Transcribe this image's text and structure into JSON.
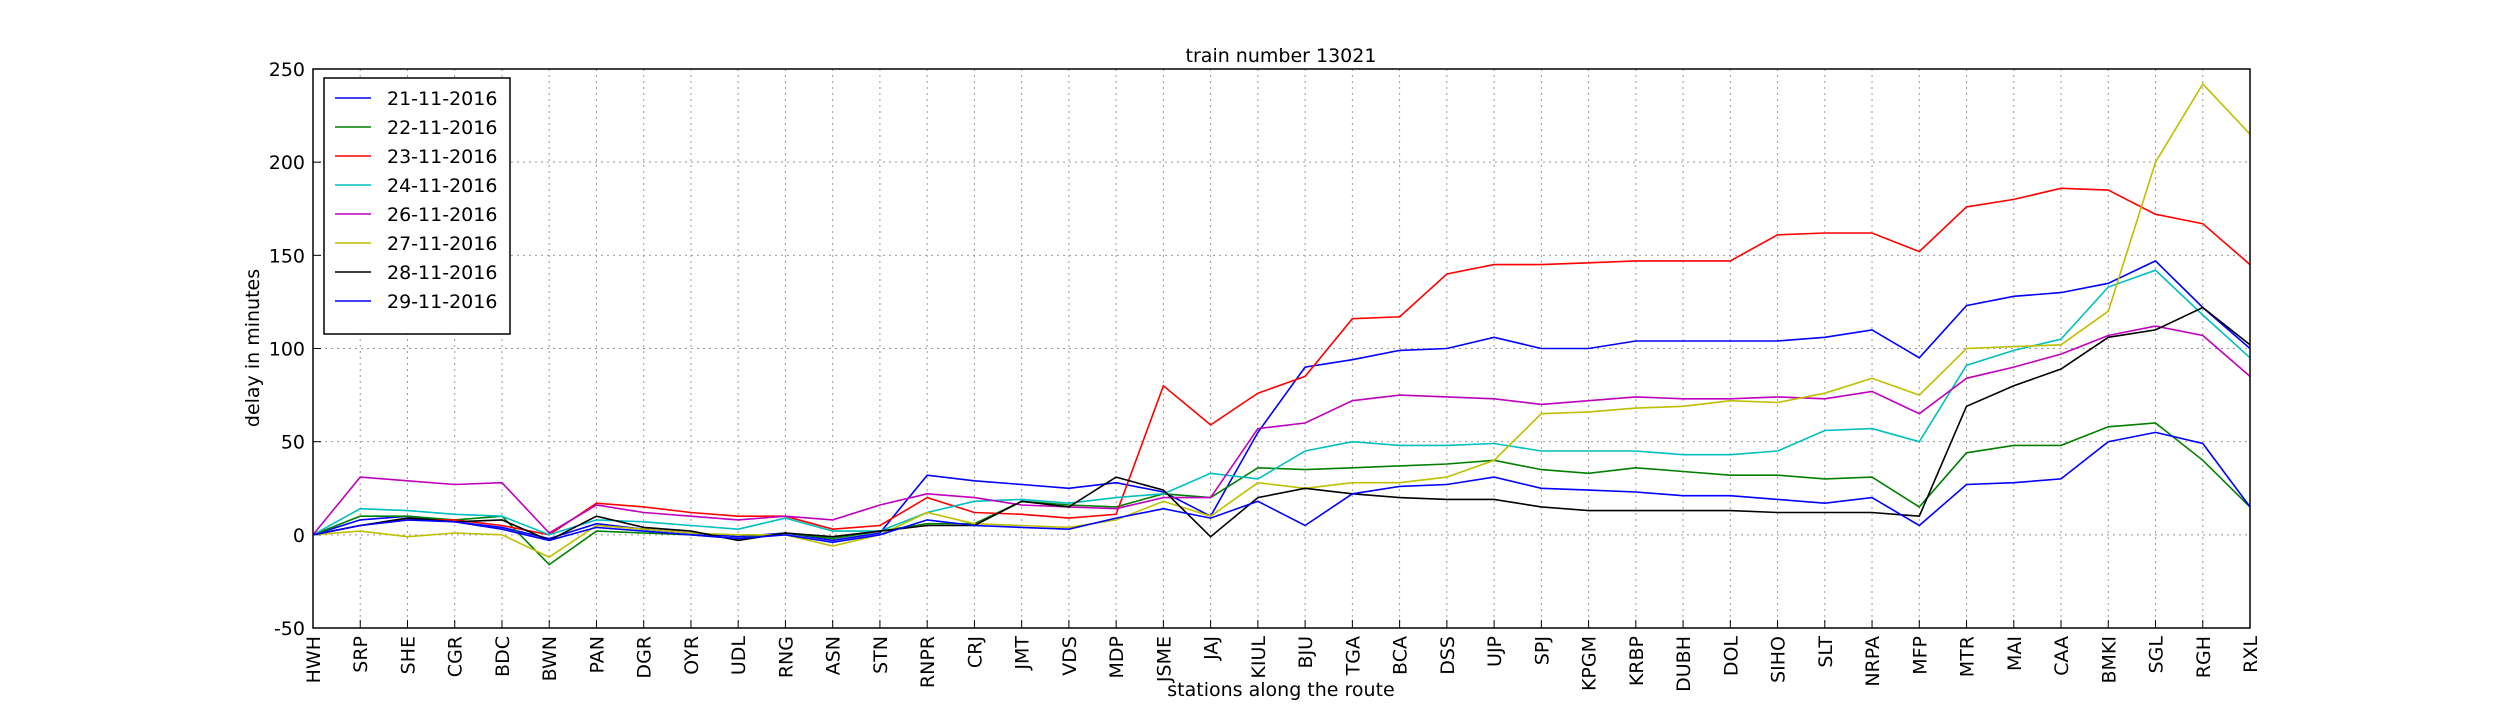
{
  "chart_data": {
    "type": "line",
    "title": "train number 13021",
    "x_label": "stations along the route",
    "y_label": "delay in minutes",
    "categories": [
      "HWH",
      "SRP",
      "SHE",
      "CGR",
      "BDC",
      "BWN",
      "PAN",
      "DGR",
      "OYR",
      "UDL",
      "RNG",
      "ASN",
      "STN",
      "RNPR",
      "CRJ",
      "JMT",
      "VDS",
      "MDP",
      "JSME",
      "JAJ",
      "KIUL",
      "BJU",
      "TGA",
      "BCA",
      "DSS",
      "UJP",
      "SPJ",
      "KPGM",
      "KRBP",
      "DUBH",
      "DOL",
      "SIHO",
      "SLT",
      "NRPA",
      "MFP",
      "MTR",
      "MAI",
      "CAA",
      "BMKI",
      "SGL",
      "RGH",
      "RXL"
    ],
    "ylim": [
      -50,
      250
    ],
    "yticks": [
      -50,
      0,
      50,
      100,
      150,
      200,
      250
    ],
    "grid": true,
    "legend": "upper left",
    "series": [
      {
        "name": "21-11-2016",
        "color": "#0000ff",
        "values": [
          0,
          8,
          10,
          7,
          4,
          -2,
          6,
          3,
          1,
          -1,
          1,
          -3,
          1,
          32,
          29,
          27,
          25,
          28,
          23,
          10,
          55,
          90,
          94,
          99,
          100,
          106,
          100,
          100,
          104,
          104,
          104,
          104,
          106,
          110,
          95,
          123,
          128,
          130,
          135,
          147,
          122,
          100
        ]
      },
      {
        "name": "22-11-2016",
        "color": "#008000",
        "values": [
          0,
          10,
          10,
          8,
          10,
          -16,
          2,
          1,
          0,
          -2,
          1,
          -2,
          2,
          6,
          6,
          18,
          16,
          15,
          22,
          20,
          36,
          35,
          36,
          37,
          38,
          40,
          35,
          33,
          36,
          34,
          32,
          32,
          30,
          31,
          15,
          44,
          48,
          48,
          58,
          60,
          40,
          15
        ]
      },
      {
        "name": "23-11-2016",
        "color": "#ff0000",
        "values": [
          0,
          5,
          8,
          8,
          5,
          0,
          17,
          15,
          12,
          10,
          10,
          3,
          5,
          20,
          12,
          11,
          9,
          11,
          80,
          59,
          76,
          85,
          116,
          117,
          140,
          145,
          145,
          146,
          147,
          147,
          147,
          161,
          162,
          162,
          152,
          176,
          180,
          186,
          185,
          172,
          167,
          145
        ]
      },
      {
        "name": "24-11-2016",
        "color": "#00bfbf",
        "values": [
          0,
          14,
          13,
          11,
          10,
          0,
          8,
          7,
          5,
          3,
          9,
          2,
          2,
          12,
          18,
          19,
          17,
          20,
          22,
          33,
          30,
          45,
          50,
          48,
          48,
          49,
          45,
          45,
          45,
          43,
          43,
          45,
          56,
          57,
          50,
          91,
          99,
          105,
          133,
          142,
          118,
          95
        ]
      },
      {
        "name": "26-11-2016",
        "color": "#bf00bf",
        "values": [
          0,
          31,
          29,
          27,
          28,
          1,
          16,
          12,
          10,
          8,
          10,
          8,
          16,
          22,
          20,
          16,
          15,
          14,
          20,
          20,
          57,
          60,
          72,
          75,
          74,
          73,
          70,
          72,
          74,
          73,
          73,
          74,
          73,
          77,
          65,
          84,
          90,
          97,
          107,
          112,
          107,
          85
        ]
      },
      {
        "name": "27-11-2016",
        "color": "#bfbf00",
        "values": [
          0,
          2,
          -1,
          1,
          0,
          -12,
          5,
          3,
          1,
          0,
          0,
          -6,
          0,
          12,
          6,
          5,
          4,
          8,
          18,
          10,
          28,
          25,
          28,
          28,
          31,
          40,
          65,
          66,
          68,
          69,
          72,
          71,
          76,
          84,
          75,
          100,
          101,
          102,
          120,
          200,
          242,
          215
        ]
      },
      {
        "name": "28-11-2016",
        "color": "#000000",
        "values": [
          0,
          5,
          9,
          7,
          8,
          -3,
          10,
          4,
          2,
          -3,
          1,
          -1,
          2,
          5,
          5,
          18,
          15,
          31,
          24,
          -1,
          20,
          25,
          22,
          20,
          19,
          19,
          15,
          13,
          13,
          13,
          13,
          12,
          12,
          12,
          10,
          69,
          80,
          89,
          106,
          110,
          122,
          102
        ]
      },
      {
        "name": "29-11-2016",
        "color": "#0000ff",
        "values": [
          0,
          5,
          8,
          7,
          3,
          -3,
          4,
          2,
          0,
          -2,
          0,
          -4,
          0,
          8,
          5,
          4,
          3,
          9,
          14,
          9,
          18,
          5,
          22,
          26,
          27,
          31,
          25,
          24,
          23,
          21,
          21,
          19,
          17,
          20,
          5,
          27,
          28,
          30,
          50,
          55,
          49,
          15
        ]
      }
    ]
  }
}
